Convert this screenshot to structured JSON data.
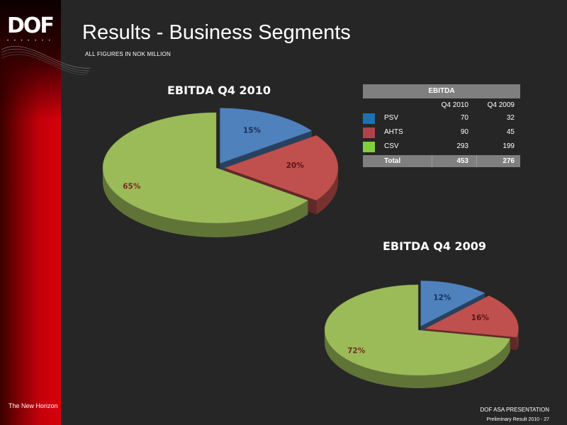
{
  "header": {
    "title": "Results - Business Segments",
    "subtitle": "ALL FIGURES IN NOK MILLION"
  },
  "brand": {
    "logo_text": "DOF",
    "tagline": "The New Horizon",
    "color_red": "#c4000a"
  },
  "footer": {
    "line1": "DOF ASA PRESENTATION",
    "line2": "Preliminary Result 2010 - 27"
  },
  "colors": {
    "psv": "#4f81bd",
    "ahts": "#c0504d",
    "csv": "#9bbb59"
  },
  "table": {
    "header": "EBITDA",
    "col1": "Q4 2010",
    "col2": "Q4 2009",
    "rows": [
      {
        "name": "PSV",
        "q4_2010": "70",
        "q4_2009": "32"
      },
      {
        "name": "AHTS",
        "q4_2010": "90",
        "q4_2009": "45"
      },
      {
        "name": "CSV",
        "q4_2010": "293",
        "q4_2009": "199"
      }
    ],
    "total": {
      "name": "Total",
      "q4_2010": "453",
      "q4_2009": "276"
    }
  },
  "chart_data": [
    {
      "type": "pie",
      "title": "EBITDA Q4 2010",
      "categories": [
        "PSV",
        "AHTS",
        "CSV"
      ],
      "values": [
        15,
        20,
        65
      ],
      "labels": [
        "15%",
        "20%",
        "65%"
      ]
    },
    {
      "type": "pie",
      "title": "EBITDA Q4 2009",
      "categories": [
        "PSV",
        "AHTS",
        "CSV"
      ],
      "values": [
        12,
        16,
        72
      ],
      "labels": [
        "12%",
        "16%",
        "72%"
      ]
    }
  ]
}
